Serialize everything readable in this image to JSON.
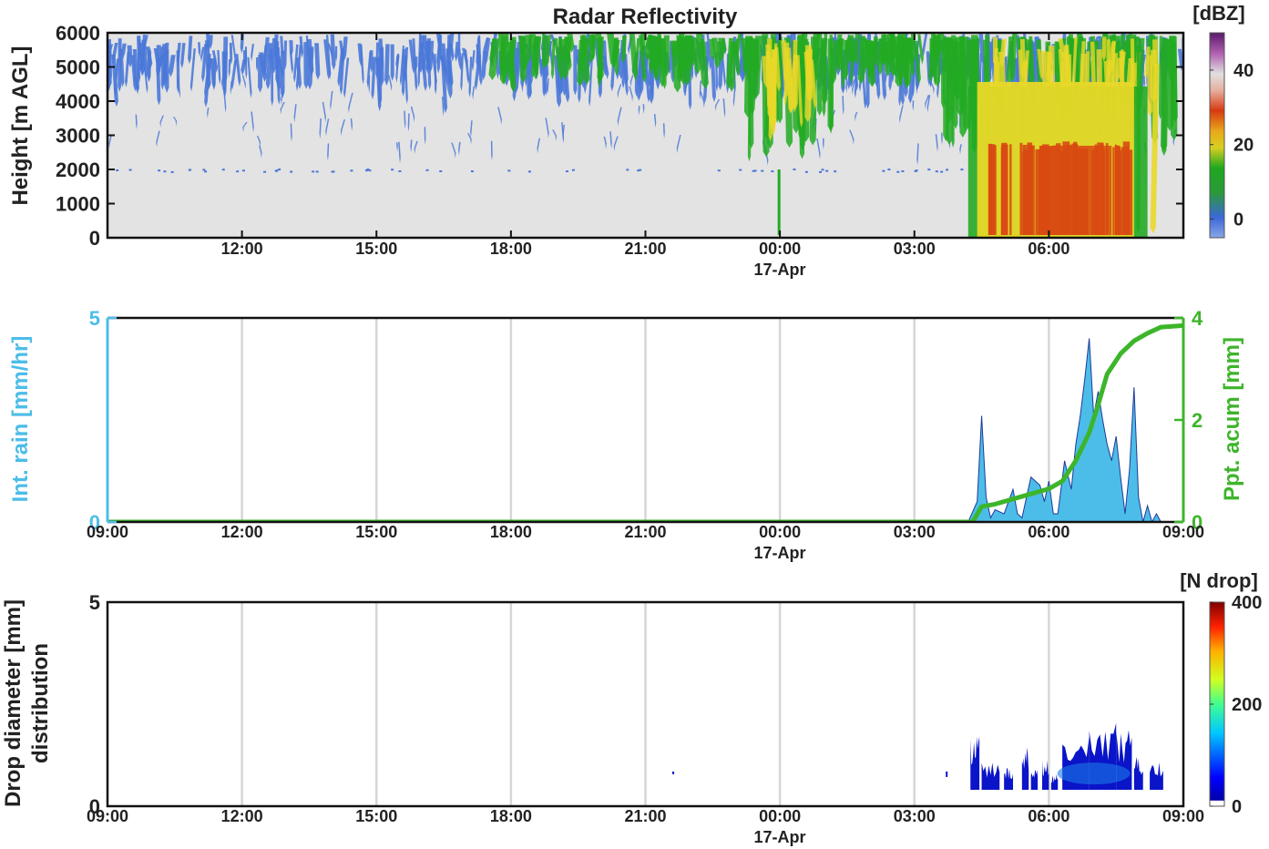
{
  "chart_data": [
    {
      "type": "heatmap",
      "title": "Radar Reflectivity",
      "ylabel": "Height [m AGL]",
      "ylim": [
        0,
        6000
      ],
      "yticks": [
        "0",
        "1000",
        "2000",
        "3000",
        "4000",
        "5000",
        "6000"
      ],
      "x_ticks": [
        "12:00",
        "15:00",
        "18:00",
        "21:00",
        "00:00",
        "03:00",
        "06:00"
      ],
      "date_label": "17-Apr",
      "colorbar": {
        "label": "[dBZ]",
        "ticks": [
          "0",
          "20",
          "40"
        ],
        "range": [
          -5,
          50
        ]
      },
      "colors": {
        "background": "#e3e3e3",
        "weak": "#4a78d8",
        "moderate": "#22aa22",
        "strong": "#e8d828",
        "heavy": "#d84a12"
      }
    },
    {
      "type": "area",
      "ylabel_left": "Int. rain [mm/hr]",
      "ylabel_right": "Ppt. acum [mm]",
      "ylim_left": [
        0,
        5
      ],
      "ylim_right": [
        0,
        4
      ],
      "yticks_left": [
        "0",
        "5"
      ],
      "yticks_right": [
        "0",
        "2",
        "4"
      ],
      "x_ticks": [
        "09:00",
        "12:00",
        "15:00",
        "18:00",
        "21:00",
        "00:00",
        "03:00",
        "06:00",
        "09:00"
      ],
      "date_label": "17-Apr",
      "series": [
        {
          "name": "Int. rain",
          "x": [
            19.2,
            19.4,
            19.5,
            19.6,
            19.7,
            19.8,
            20.0,
            20.2,
            20.3,
            20.4,
            20.6,
            20.8,
            20.9,
            21.0,
            21.1,
            21.2,
            21.35,
            21.5,
            21.6,
            21.7,
            21.8,
            21.9,
            22.0,
            22.1,
            22.2,
            22.3,
            22.4,
            22.5,
            22.6,
            22.7,
            22.8,
            22.9,
            23.0,
            23.1,
            23.2,
            23.3,
            23.4,
            23.5
          ],
          "values": [
            0,
            0.5,
            2.6,
            0.6,
            0.1,
            0.3,
            0.2,
            0.8,
            0.2,
            0.1,
            1.1,
            0.9,
            0.5,
            1.0,
            0.2,
            0.2,
            1.5,
            0.8,
            1.9,
            2.6,
            3.5,
            4.5,
            2.6,
            3.2,
            2.5,
            1.9,
            1.5,
            2.1,
            1.1,
            0.2,
            1.3,
            3.3,
            0.6,
            0,
            0.4,
            0,
            0.2,
            0
          ]
        },
        {
          "name": "Ppt. acum",
          "x": [
            0,
            19.3,
            19.5,
            19.8,
            20.2,
            20.6,
            21.0,
            21.3,
            21.6,
            21.9,
            22.1,
            22.3,
            22.6,
            22.9,
            23.2,
            23.5,
            24.0
          ],
          "values": [
            0,
            0,
            0.3,
            0.35,
            0.45,
            0.55,
            0.65,
            0.8,
            1.2,
            1.75,
            2.3,
            2.9,
            3.3,
            3.55,
            3.7,
            3.82,
            3.85
          ]
        }
      ],
      "colors": {
        "rain": "#4cbde8",
        "rain_edge": "#1f3a9a",
        "acum": "#3db52a"
      }
    },
    {
      "type": "heatmap",
      "ylabel": [
        "Drop diameter [mm]",
        "distribution"
      ],
      "ylim": [
        0,
        5
      ],
      "yticks": [
        "0",
        "5"
      ],
      "x_ticks": [
        "09:00",
        "12:00",
        "15:00",
        "18:00",
        "21:00",
        "00:00",
        "03:00",
        "06:00",
        "09:00"
      ],
      "date_label": "17-Apr",
      "colorbar": {
        "label": "[N drop]",
        "ticks": [
          "0",
          "200",
          "400"
        ],
        "range": [
          0,
          400
        ]
      },
      "colors": {
        "low": "#0a14c8",
        "mid": "#1a7ae8"
      }
    }
  ]
}
